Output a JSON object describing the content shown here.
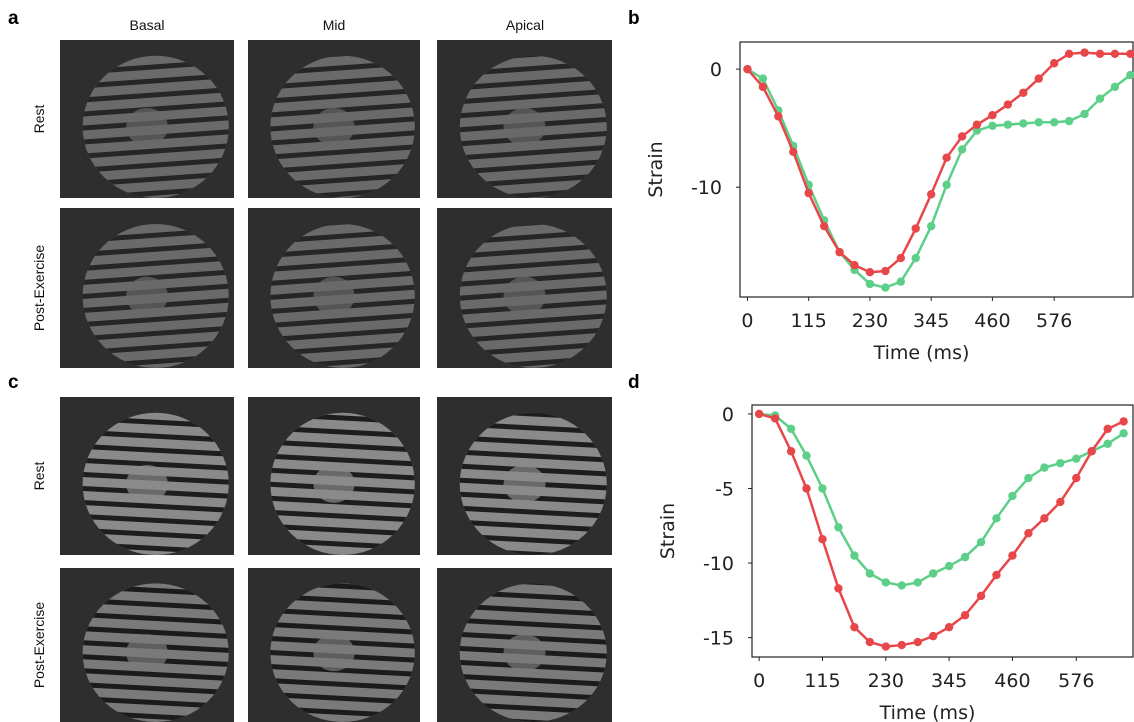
{
  "panels": {
    "a": {
      "label": "a",
      "column_headers": [
        "Basal",
        "Mid",
        "Apical"
      ],
      "row_labels": [
        "Rest",
        "Post-Exercise"
      ]
    },
    "b": {
      "label": "b"
    },
    "c": {
      "label": "c",
      "row_labels": [
        "Rest",
        "Post-Exercise"
      ]
    },
    "d": {
      "label": "d"
    }
  },
  "chart_data": [
    {
      "type": "line",
      "xlabel": "Time (ms)",
      "ylabel": "Strain",
      "x": [
        0,
        29,
        58,
        86,
        115,
        144,
        173,
        201,
        230,
        259,
        288,
        316,
        345,
        374,
        403,
        431,
        460,
        489,
        518,
        547,
        576,
        604,
        633,
        662,
        690,
        719
      ],
      "series": [
        {
          "color": "#5dcf88",
          "values": [
            0,
            -0.8,
            -3.5,
            -6.5,
            -9.8,
            -12.8,
            -15.5,
            -17,
            -18.2,
            -18.5,
            -18,
            -16,
            -13.3,
            -9.8,
            -6.8,
            -5.2,
            -4.8,
            -4.7,
            -4.6,
            -4.5,
            -4.5,
            -4.4,
            -3.8,
            -2.5,
            -1.5,
            -0.5
          ]
        },
        {
          "color": "#e8474a",
          "values": [
            0,
            -1.5,
            -4,
            -7,
            -10.5,
            -13.3,
            -15.5,
            -16.6,
            -17.2,
            -17.1,
            -16,
            -13.5,
            -10.6,
            -7.5,
            -5.7,
            -4.7,
            -3.9,
            -3,
            -2,
            -0.8,
            0.5,
            1.3,
            1.4,
            1.3,
            1.3,
            1.3
          ]
        }
      ],
      "xlim": [
        -14,
        724
      ],
      "xticks": [
        0,
        115,
        230,
        345,
        460,
        576
      ],
      "ylim": [
        -19.3,
        2.3
      ],
      "yticks": [
        0,
        -10
      ]
    },
    {
      "type": "line",
      "xlabel": "Time (ms)",
      "ylabel": "Strain",
      "x": [
        0,
        29,
        58,
        86,
        115,
        144,
        173,
        201,
        230,
        259,
        288,
        316,
        345,
        374,
        403,
        431,
        460,
        489,
        518,
        547,
        576,
        604,
        633,
        662
      ],
      "series": [
        {
          "color": "#5dcf88",
          "values": [
            0,
            -0.1,
            -1,
            -2.8,
            -5,
            -7.6,
            -9.5,
            -10.7,
            -11.3,
            -11.5,
            -11.3,
            -10.7,
            -10.2,
            -9.6,
            -8.6,
            -7,
            -5.5,
            -4.3,
            -3.6,
            -3.3,
            -3,
            -2.5,
            -2,
            -1.3
          ]
        },
        {
          "color": "#e8474a",
          "values": [
            0,
            -0.3,
            -2.5,
            -5,
            -8.4,
            -11.7,
            -14.3,
            -15.3,
            -15.6,
            -15.5,
            -15.3,
            -14.9,
            -14.3,
            -13.5,
            -12.2,
            -10.8,
            -9.5,
            -8,
            -7,
            -5.9,
            -4.3,
            -2.5,
            -1,
            -0.5
          ]
        }
      ],
      "xlim": [
        -13,
        679
      ],
      "xticks": [
        0,
        115,
        230,
        345,
        460,
        576
      ],
      "ylim": [
        -16.3,
        0.6
      ],
      "yticks": [
        0,
        -5,
        -10,
        -15
      ]
    }
  ]
}
